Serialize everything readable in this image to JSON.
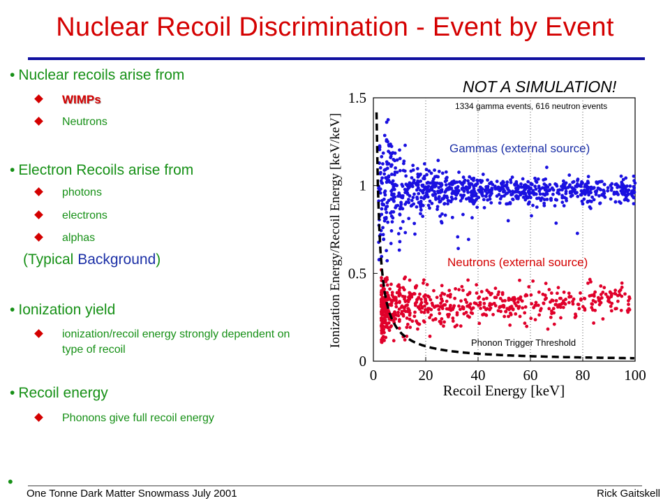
{
  "slide": {
    "title": "Nuclear Recoil Discrimination - Event by Event",
    "bullets": {
      "b1": "Nuclear recoils arise from",
      "b1_sub": [
        "WIMPs",
        "Neutrons"
      ],
      "b2": "Electron Recoils arise from",
      "b2_sub": [
        "photons",
        "electrons",
        "alphas"
      ],
      "b2_note_open": "(Typical ",
      "b2_note_blue": "Background",
      "b2_note_close": ")",
      "b3": "Ionization yield",
      "b3_sub": [
        "ionization/recoil energy strongly dependent on type of recoil"
      ],
      "b4": "Recoil energy",
      "b4_sub": [
        "Phonons give full recoil energy"
      ]
    },
    "footer": {
      "left": "One Tonne Dark Matter Snowmass July 2001",
      "right": "Rick Gaitskell"
    },
    "colors": {
      "title": "#d40000",
      "text": "#169016",
      "accent": "#1b2fa6",
      "rule": "#1010a0"
    }
  },
  "chart_data": {
    "type": "scatter",
    "xlabel": "Recoil Energy [keV]",
    "ylabel": "Ionization Energy/Recoil Energy [keV/keV]",
    "xlim": [
      0,
      100
    ],
    "ylim": [
      0,
      1.5
    ],
    "xticks": [
      "0",
      "20",
      "40",
      "60",
      "80",
      "100"
    ],
    "yticks": [
      "0",
      "0.5",
      "1",
      "1.5"
    ],
    "grid": "dotted vertical at 20, 40, 60, 80",
    "annotations": {
      "headline": "NOT A SIMULATION!",
      "counts": "1334 gamma events, 616 neutron events",
      "gammas": "Gammas (external source)",
      "neutrons": "Neutrons (external source)",
      "threshold": "Phonon Trigger Threshold"
    },
    "series": [
      {
        "name": "Gammas (external source)",
        "color": "#1a10e0",
        "count": 1334,
        "y_center": 0.97,
        "x_range": [
          2,
          100
        ]
      },
      {
        "name": "Neutrons (external source)",
        "color": "#e0002a",
        "count": 616,
        "y_center": 0.3,
        "x_range": [
          3,
          98
        ]
      }
    ],
    "threshold_curve": {
      "style": "dashed",
      "color": "#000000"
    }
  }
}
